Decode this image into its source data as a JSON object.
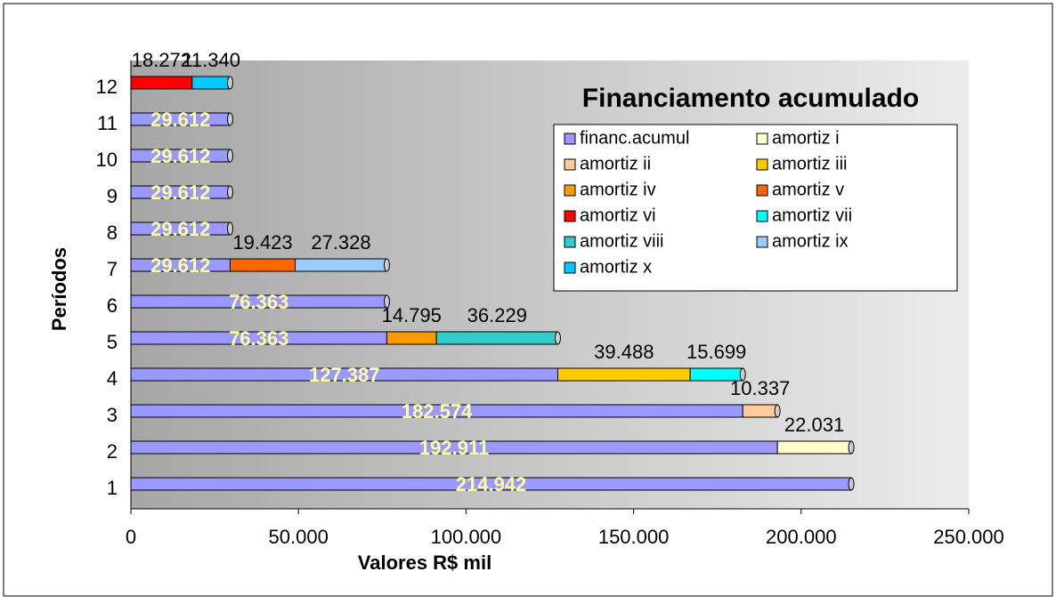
{
  "chart_data": {
    "type": "stacked-barh",
    "title": "Financiamento acumulado",
    "xlabel": "Valores R$ mil",
    "ylabel": "Períodos",
    "categories": [
      "1",
      "2",
      "3",
      "4",
      "5",
      "6",
      "7",
      "8",
      "9",
      "10",
      "11",
      "12"
    ],
    "xlim": [
      0,
      250000
    ],
    "xticks": [
      {
        "value": 0,
        "label": "0"
      },
      {
        "value": 50000,
        "label": "50.000"
      },
      {
        "value": 100000,
        "label": "100.000"
      },
      {
        "value": 150000,
        "label": "150.000"
      },
      {
        "value": 200000,
        "label": "200.000"
      },
      {
        "value": 250000,
        "label": "250.000"
      }
    ],
    "series": [
      {
        "name": "financ.acumul",
        "color": "#9999ff",
        "values": [
          214942,
          192911,
          182574,
          127387,
          76363,
          76363,
          29612,
          29612,
          29612,
          29612,
          29612,
          null
        ],
        "value_labels": [
          "214.942",
          "192.911",
          "182.574",
          "127.387",
          "76.363",
          "76.363",
          "29.612",
          "29.612",
          "29.612",
          "29.612",
          "29.612",
          null
        ]
      },
      {
        "name": "amortiz i",
        "color": "#ffffcc",
        "values": [
          null,
          22031,
          null,
          null,
          null,
          null,
          null,
          null,
          null,
          null,
          null,
          null
        ],
        "value_labels": [
          null,
          "22.031",
          null,
          null,
          null,
          null,
          null,
          null,
          null,
          null,
          null,
          null
        ]
      },
      {
        "name": "amortiz ii",
        "color": "#ffcc99",
        "values": [
          null,
          null,
          10337,
          null,
          null,
          null,
          null,
          null,
          null,
          null,
          null,
          null
        ],
        "value_labels": [
          null,
          null,
          "10.337",
          null,
          null,
          null,
          null,
          null,
          null,
          null,
          null,
          null
        ]
      },
      {
        "name": "amortiz iii",
        "color": "#ffcc00",
        "values": [
          null,
          null,
          null,
          39488,
          null,
          null,
          null,
          null,
          null,
          null,
          null,
          null
        ],
        "value_labels": [
          null,
          null,
          null,
          "39.488",
          null,
          null,
          null,
          null,
          null,
          null,
          null,
          null
        ]
      },
      {
        "name": "amortiz iv",
        "color": "#ff9900",
        "values": [
          null,
          null,
          null,
          null,
          14795,
          null,
          null,
          null,
          null,
          null,
          null,
          null
        ],
        "value_labels": [
          null,
          null,
          null,
          null,
          "14.795",
          null,
          null,
          null,
          null,
          null,
          null,
          null
        ]
      },
      {
        "name": "amortiz v",
        "color": "#ff6600",
        "values": [
          null,
          null,
          null,
          null,
          null,
          null,
          19423,
          null,
          null,
          null,
          null,
          null
        ],
        "value_labels": [
          null,
          null,
          null,
          null,
          null,
          null,
          "19.423",
          null,
          null,
          null,
          null,
          null
        ]
      },
      {
        "name": "amortiz vi",
        "color": "#ff0000",
        "values": [
          null,
          null,
          null,
          null,
          null,
          null,
          null,
          null,
          null,
          null,
          null,
          18272
        ],
        "value_labels": [
          null,
          null,
          null,
          null,
          null,
          null,
          null,
          null,
          null,
          null,
          null,
          "18.272"
        ]
      },
      {
        "name": "amortiz vii",
        "color": "#00ffff",
        "values": [
          null,
          null,
          null,
          15699,
          null,
          null,
          null,
          null,
          null,
          null,
          null,
          null
        ],
        "value_labels": [
          null,
          null,
          null,
          "15.699",
          null,
          null,
          null,
          null,
          null,
          null,
          null,
          null
        ]
      },
      {
        "name": "amortiz viii",
        "color": "#33cccc",
        "values": [
          null,
          null,
          null,
          null,
          36229,
          null,
          null,
          null,
          null,
          null,
          null,
          null
        ],
        "value_labels": [
          null,
          null,
          null,
          null,
          "36.229",
          null,
          null,
          null,
          null,
          null,
          null,
          null
        ]
      },
      {
        "name": "amortiz ix",
        "color": "#99ccff",
        "values": [
          null,
          null,
          null,
          null,
          null,
          null,
          27328,
          null,
          null,
          null,
          null,
          null
        ],
        "value_labels": [
          null,
          null,
          null,
          null,
          null,
          null,
          "27.328",
          null,
          null,
          null,
          null,
          null
        ]
      },
      {
        "name": "amortiz x",
        "color": "#00ccff",
        "values": [
          null,
          null,
          null,
          null,
          null,
          null,
          null,
          null,
          null,
          null,
          null,
          11340
        ],
        "value_labels": [
          null,
          null,
          null,
          null,
          null,
          null,
          null,
          null,
          null,
          null,
          null,
          "11.340"
        ]
      }
    ],
    "legend": "upper right"
  }
}
